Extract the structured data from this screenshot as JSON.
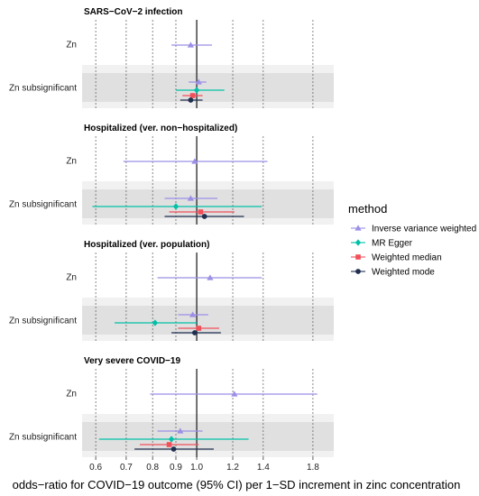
{
  "chart_data": {
    "type": "forest",
    "xlabel": "odds−ratio for COVID−19 outcome (95% CI) per 1−SD increment in zinc concentration",
    "x_ticks": [
      0.6,
      0.7,
      0.8,
      0.9,
      1.0,
      1.2,
      1.4,
      1.8
    ],
    "x_tick_labels": [
      "0.6",
      "0.7",
      "0.8",
      "0.9",
      "1.0",
      "1.2",
      "1.4",
      "1.8"
    ],
    "xlim": [
      0.56,
      2.0
    ],
    "reference_line": 1.0,
    "log_scale": true,
    "legend": {
      "title": "method",
      "placement": "right",
      "items": [
        {
          "name": "Inverse variance weighted",
          "color": "#9b8fe6",
          "shape": "triangle"
        },
        {
          "name": "MR Egger",
          "color": "#00c1a8",
          "shape": "diamond"
        },
        {
          "name": "Weighted median",
          "color": "#f0505a",
          "shape": "square"
        },
        {
          "name": "Weighted mode",
          "color": "#1f2f4f",
          "shape": "circle"
        }
      ]
    },
    "panels": [
      {
        "title": "SARS−CoV−2 infection",
        "rows": [
          {
            "label": "Zn",
            "shaded": false,
            "estimates": [
              {
                "method": "Inverse variance weighted",
                "or": 0.97,
                "lo": 0.88,
                "hi": 1.08
              }
            ]
          },
          {
            "label": "Zn subsignificant",
            "shaded": true,
            "estimates": [
              {
                "method": "Inverse variance weighted",
                "or": 1.01,
                "lo": 0.96,
                "hi": 1.05
              },
              {
                "method": "MR Egger",
                "or": 1.0,
                "lo": 0.9,
                "hi": 1.15
              },
              {
                "method": "Weighted median",
                "or": 0.98,
                "lo": 0.93,
                "hi": 1.03
              },
              {
                "method": "Weighted mode",
                "or": 0.97,
                "lo": 0.92,
                "hi": 1.03
              }
            ]
          }
        ]
      },
      {
        "title": "Hospitalized (ver. non−hospitalized)",
        "rows": [
          {
            "label": "Zn",
            "shaded": false,
            "estimates": [
              {
                "method": "Inverse variance weighted",
                "or": 0.99,
                "lo": 0.69,
                "hi": 1.43
              }
            ]
          },
          {
            "label": "Zn subsignificant",
            "shaded": true,
            "estimates": [
              {
                "method": "Inverse variance weighted",
                "or": 0.97,
                "lo": 0.85,
                "hi": 1.11
              },
              {
                "method": "MR Egger",
                "or": 0.9,
                "lo": 0.59,
                "hi": 1.39
              },
              {
                "method": "Weighted median",
                "or": 1.02,
                "lo": 0.87,
                "hi": 1.21
              },
              {
                "method": "Weighted mode",
                "or": 1.04,
                "lo": 0.85,
                "hi": 1.27
              }
            ]
          }
        ]
      },
      {
        "title": "Hospitalized (ver. population)",
        "rows": [
          {
            "label": "Zn",
            "shaded": false,
            "estimates": [
              {
                "method": "Inverse variance weighted",
                "or": 1.07,
                "lo": 0.82,
                "hi": 1.39
              }
            ]
          },
          {
            "label": "Zn subsignificant",
            "shaded": true,
            "estimates": [
              {
                "method": "Inverse variance weighted",
                "or": 0.98,
                "lo": 0.91,
                "hi": 1.06
              },
              {
                "method": "MR Egger",
                "or": 0.81,
                "lo": 0.66,
                "hi": 1.0
              },
              {
                "method": "Weighted median",
                "or": 1.01,
                "lo": 0.91,
                "hi": 1.12
              },
              {
                "method": "Weighted mode",
                "or": 0.99,
                "lo": 0.88,
                "hi": 1.13
              }
            ]
          }
        ]
      },
      {
        "title": "Very severe COVID−19",
        "rows": [
          {
            "label": "Zn",
            "shaded": false,
            "estimates": [
              {
                "method": "Inverse variance weighted",
                "or": 1.21,
                "lo": 0.79,
                "hi": 1.84
              }
            ]
          },
          {
            "label": "Zn subsignificant",
            "shaded": true,
            "estimates": [
              {
                "method": "Inverse variance weighted",
                "or": 0.92,
                "lo": 0.82,
                "hi": 1.03
              },
              {
                "method": "MR Egger",
                "or": 0.88,
                "lo": 0.61,
                "hi": 1.3
              },
              {
                "method": "Weighted median",
                "or": 0.87,
                "lo": 0.75,
                "hi": 1.01
              },
              {
                "method": "Weighted mode",
                "or": 0.89,
                "lo": 0.73,
                "hi": 1.09
              }
            ]
          }
        ]
      }
    ]
  }
}
